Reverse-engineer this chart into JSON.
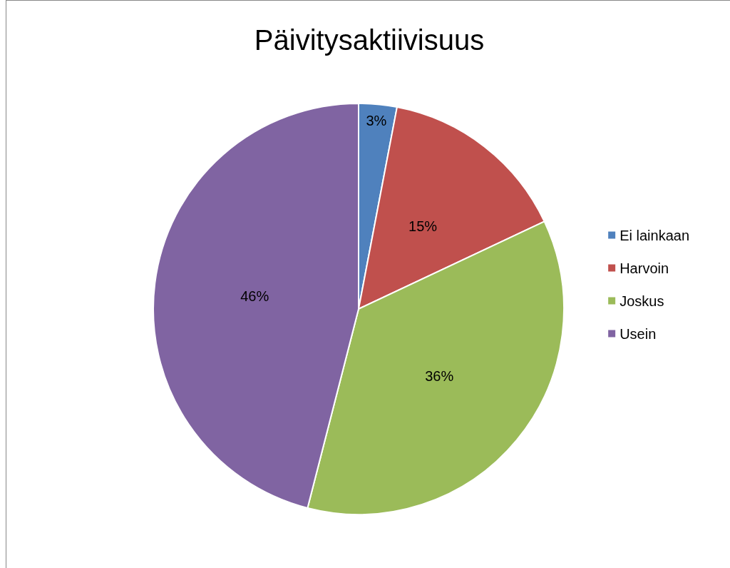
{
  "chart_data": {
    "type": "pie",
    "title": "Päivitysaktiivisuus",
    "categories": [
      "Ei lainkaan",
      "Harvoin",
      "Joskus",
      "Usein"
    ],
    "values": [
      3,
      15,
      36,
      46
    ],
    "colors": [
      "#4f81bd",
      "#c0504d",
      "#9bbb59",
      "#8064a2"
    ],
    "value_labels": [
      "3%",
      "15%",
      "36%",
      "46%"
    ],
    "legend": "right"
  }
}
